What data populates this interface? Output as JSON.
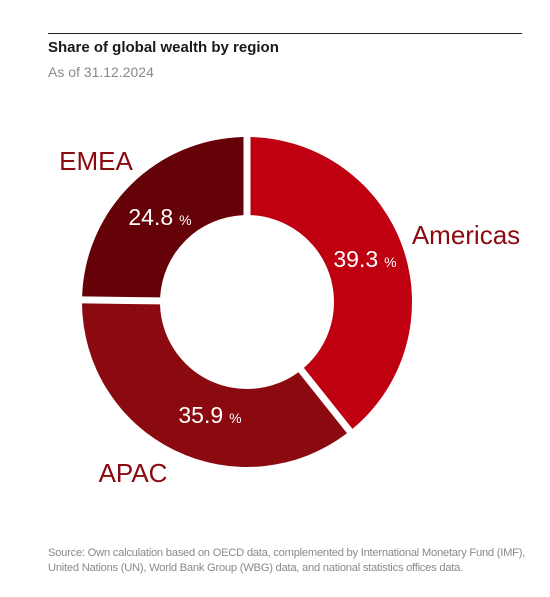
{
  "header": {
    "title": "Share of global wealth by region",
    "subtitle": "As of 31.12.2024"
  },
  "chart_data": {
    "type": "pie",
    "donut": true,
    "title": "Share of global wealth by region",
    "subtitle": "As of 31.12.2024",
    "unit": "%",
    "categories": [
      "Americas",
      "APAC",
      "EMEA"
    ],
    "values": [
      39.3,
      35.9,
      24.8
    ],
    "value_labels": [
      "39.3",
      "35.9",
      "24.8"
    ],
    "colors": [
      "#BE0010",
      "#8A0A10",
      "#650208"
    ]
  },
  "footer": {
    "source": "Source: Own calculation based on OECD data, complemented by International Monetary Fund (IMF), United Nations (UN), World Bank Group (WBG) data, and national statistics offices data."
  }
}
